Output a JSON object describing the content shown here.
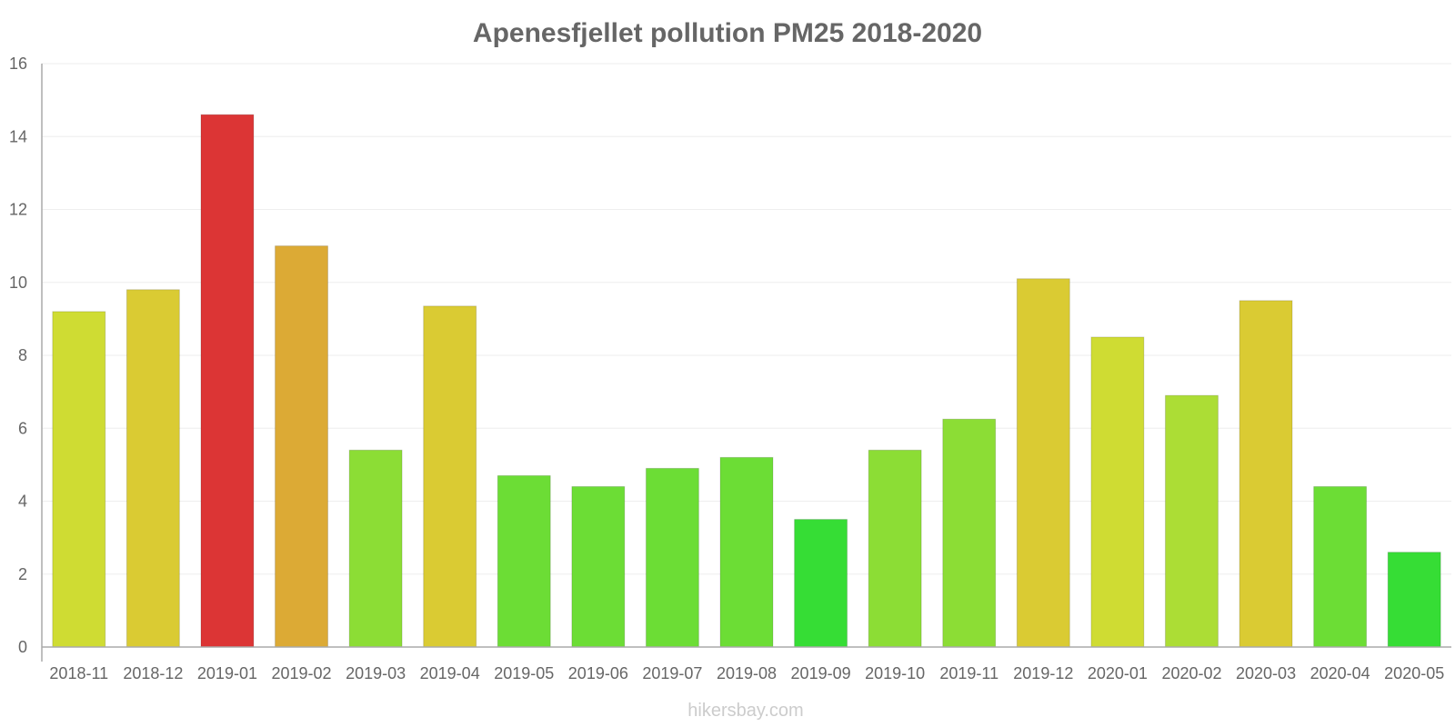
{
  "chart_data": {
    "type": "bar",
    "title": "Apenesfjellet pollution PM25 2018-2020",
    "xlabel": "",
    "ylabel": "",
    "ylim": [
      0,
      16
    ],
    "yticks": [
      0,
      2,
      4,
      6,
      8,
      10,
      12,
      14,
      16
    ],
    "grid": true,
    "categories": [
      "2018-11",
      "2018-12",
      "2019-01",
      "2019-02",
      "2019-03",
      "2019-04",
      "2019-05",
      "2019-06",
      "2019-07",
      "2019-08",
      "2019-09",
      "2019-10",
      "2019-11",
      "2019-12",
      "2020-01",
      "2020-02",
      "2020-03",
      "2020-04",
      "2020-05"
    ],
    "values": [
      9.2,
      9.8,
      14.6,
      11.0,
      5.4,
      9.35,
      4.7,
      4.4,
      4.9,
      5.2,
      3.5,
      5.4,
      6.25,
      10.1,
      8.5,
      6.9,
      9.5,
      4.4,
      2.6
    ],
    "colors": [
      "#cfdc33",
      "#dacb33",
      "#dc3535",
      "#dcaa35",
      "#8cdd35",
      "#dacb33",
      "#6cdd35",
      "#6cdd35",
      "#6cdd35",
      "#6cdd35",
      "#36dd35",
      "#8cdd35",
      "#8cdd35",
      "#dacb33",
      "#cfdc33",
      "#acdd35",
      "#dacb33",
      "#6cdd35",
      "#36dd35"
    ]
  },
  "watermark": "hikersbay.com"
}
